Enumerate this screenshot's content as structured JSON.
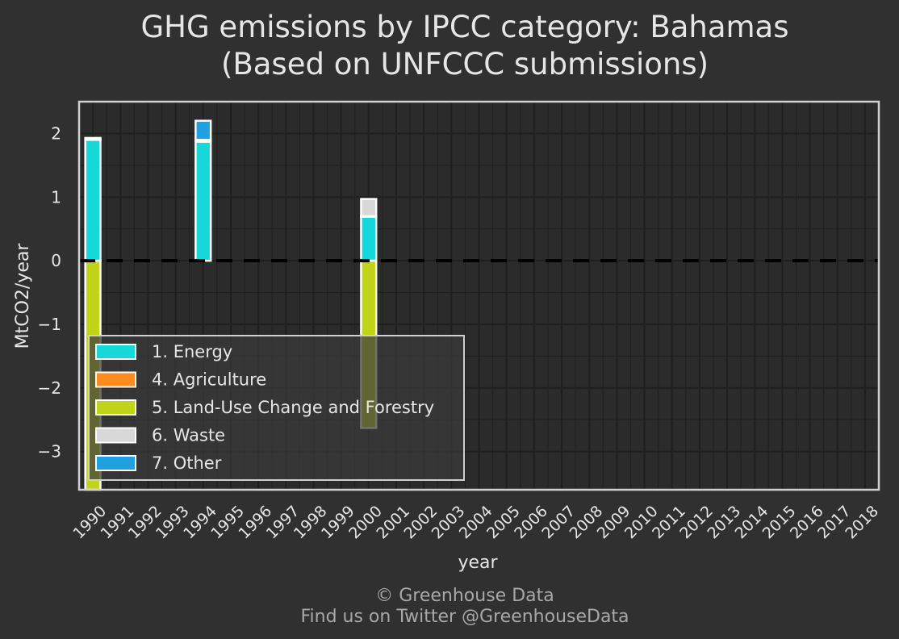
{
  "colors": {
    "background": "#303030",
    "panel": "#2b2b2b",
    "grid": "#1f1f1f",
    "frame": "#d0d0d0",
    "text": "#e6e6e6",
    "footer_text": "#a8a8a8",
    "zero_line": "#000000",
    "bar_outline": "#ffffff"
  },
  "chart_data": {
    "type": "bar",
    "stacked": true,
    "title": "GHG emissions by IPCC category: Bahamas",
    "subtitle": "(Based on UNFCCC submissions)",
    "xlabel": "year",
    "ylabel": "MtCO2/year",
    "ylim": [
      -3.6,
      2.5
    ],
    "yticks": [
      -3,
      -2,
      -1,
      0,
      1,
      2
    ],
    "grid": true,
    "legend_position": "bottom-left",
    "categories": [
      "1990",
      "1991",
      "1992",
      "1993",
      "1994",
      "1995",
      "1996",
      "1997",
      "1998",
      "1999",
      "2000",
      "2001",
      "2002",
      "2003",
      "2004",
      "2005",
      "2006",
      "2007",
      "2008",
      "2009",
      "2010",
      "2011",
      "2012",
      "2013",
      "2014",
      "2015",
      "2016",
      "2017",
      "2018"
    ],
    "series": [
      {
        "name": "1. Energy",
        "color": "#17d8d8",
        "values": [
          1.9,
          null,
          null,
          null,
          1.87,
          null,
          null,
          null,
          null,
          null,
          0.69,
          null,
          null,
          null,
          null,
          null,
          null,
          null,
          null,
          null,
          null,
          null,
          null,
          null,
          null,
          null,
          null,
          null,
          null
        ]
      },
      {
        "name": "4. Agriculture",
        "color": "#ff8a1f",
        "values": [
          0.01,
          null,
          null,
          null,
          0.01,
          null,
          null,
          null,
          null,
          null,
          0.01,
          null,
          null,
          null,
          null,
          null,
          null,
          null,
          null,
          null,
          null,
          null,
          null,
          null,
          null,
          null,
          null,
          null,
          null
        ]
      },
      {
        "name": "5. Land-Use Change and Forestry",
        "color": "#c2d41a",
        "values": [
          -3.6,
          null,
          null,
          null,
          null,
          null,
          null,
          null,
          null,
          null,
          -2.63,
          null,
          null,
          null,
          null,
          null,
          null,
          null,
          null,
          null,
          null,
          null,
          null,
          null,
          null,
          null,
          null,
          null,
          null
        ]
      },
      {
        "name": "6. Waste",
        "color": "#d8d8d8",
        "values": [
          0.02,
          null,
          null,
          null,
          0.02,
          null,
          null,
          null,
          null,
          null,
          0.27,
          null,
          null,
          null,
          null,
          null,
          null,
          null,
          null,
          null,
          null,
          null,
          null,
          null,
          null,
          null,
          null,
          null,
          null
        ]
      },
      {
        "name": "7. Other",
        "color": "#1fa0e0",
        "values": [
          null,
          null,
          null,
          null,
          0.3,
          null,
          null,
          null,
          null,
          null,
          null,
          null,
          null,
          null,
          null,
          null,
          null,
          null,
          null,
          null,
          null,
          null,
          null,
          null,
          null,
          null,
          null,
          null,
          null
        ]
      }
    ]
  },
  "footer": {
    "line1": "© Greenhouse Data",
    "line2": "Find us on Twitter @GreenhouseData"
  }
}
